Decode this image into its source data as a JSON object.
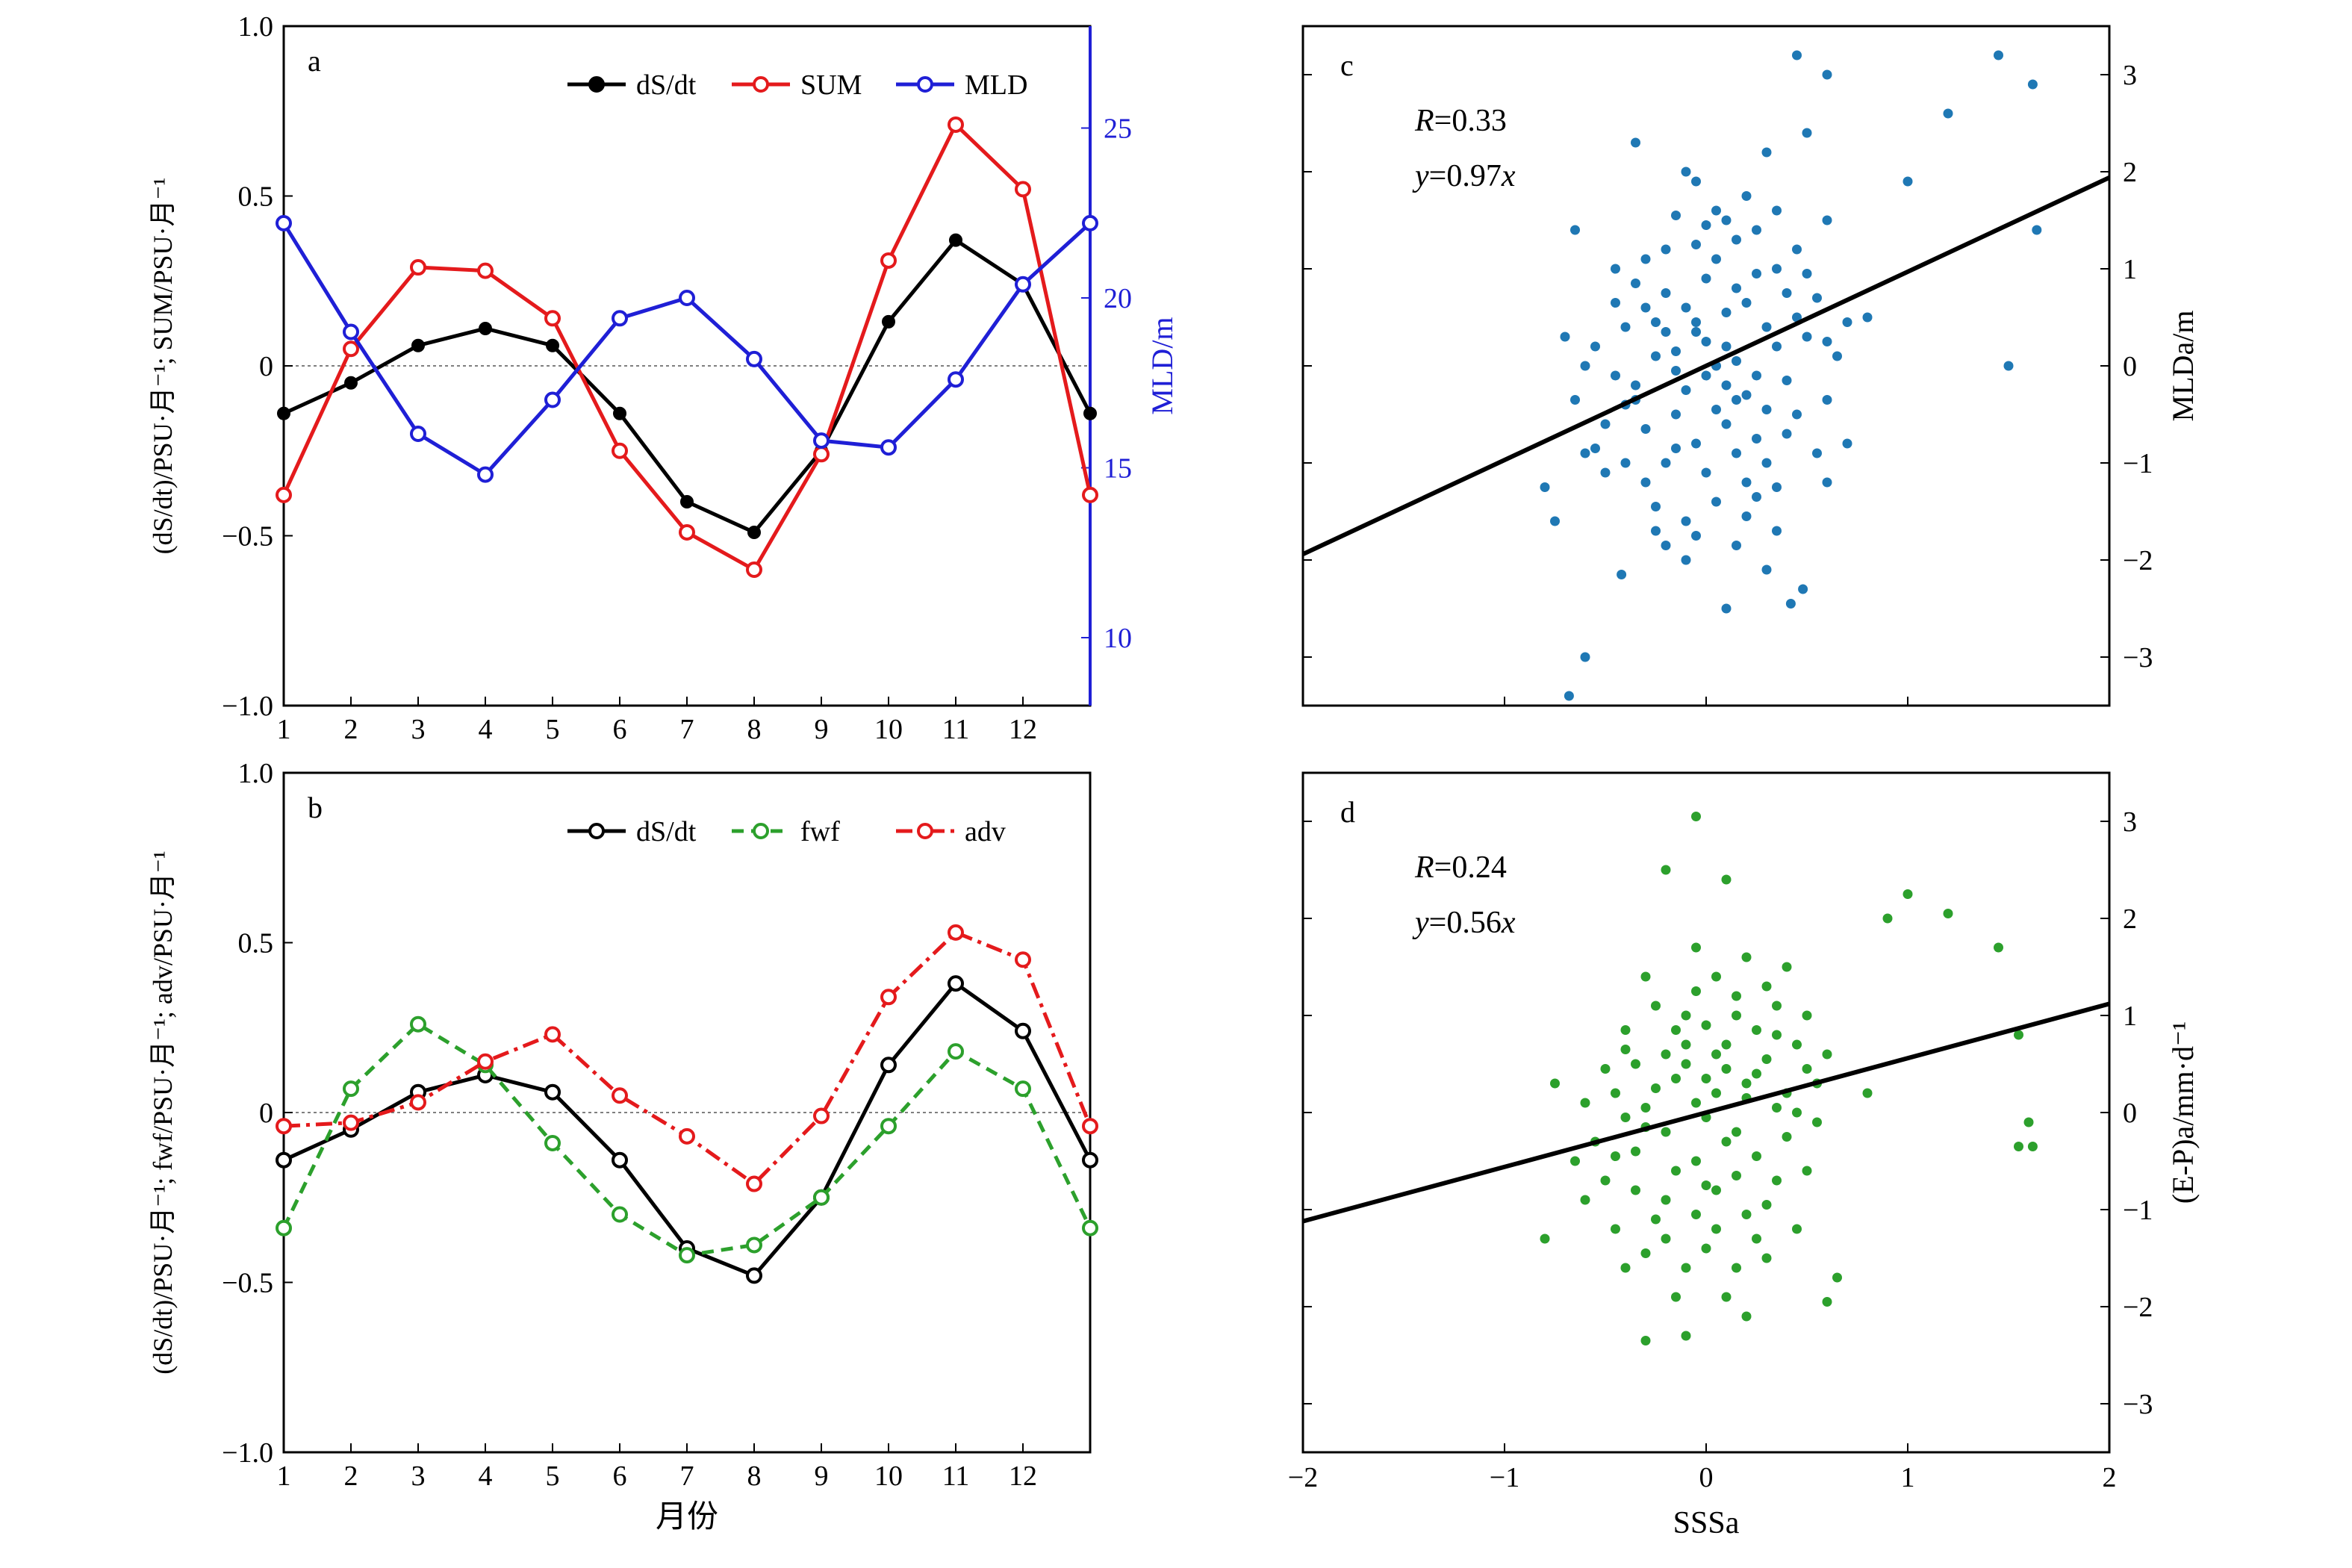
{
  "chart_data": [
    {
      "panel": "a",
      "type": "line",
      "ylabel": "(dS/dt)/PSU·月⁻¹; SUM/PSU·月⁻¹",
      "y2label": "MLD/m",
      "x": [
        1,
        2,
        3,
        4,
        5,
        6,
        7,
        8,
        9,
        10,
        11,
        12,
        13
      ],
      "xticks": [
        "1",
        "2",
        "3",
        "4",
        "5",
        "6",
        "7",
        "8",
        "9",
        "10",
        "11",
        "12"
      ],
      "xlim": [
        1,
        13
      ],
      "ylim": [
        -1,
        1
      ],
      "yticks": [
        "−1.0",
        "−0.5",
        "0",
        "0.5",
        "1.0"
      ],
      "y2lim": [
        8,
        28
      ],
      "y2ticks": [
        "10",
        "15",
        "20",
        "25"
      ],
      "legend_position": "top-right",
      "series": [
        {
          "name": "dS/dt",
          "axis": "left",
          "color": "#000000",
          "dash": "solid",
          "marker": "plus",
          "values": [
            -0.14,
            -0.05,
            0.06,
            0.11,
            0.06,
            -0.14,
            -0.4,
            -0.49,
            -0.25,
            0.13,
            0.37,
            0.24,
            -0.14
          ]
        },
        {
          "name": "SUM",
          "axis": "left",
          "color": "#e41a1c",
          "dash": "solid",
          "marker": "circle",
          "values": [
            -0.38,
            0.05,
            0.29,
            0.28,
            0.14,
            -0.25,
            -0.49,
            -0.6,
            -0.26,
            0.31,
            0.71,
            0.52,
            -0.38
          ]
        },
        {
          "name": "MLD",
          "axis": "right",
          "color": "#1f1fd6",
          "dash": "solid",
          "marker": "circle",
          "values": [
            22.2,
            19.0,
            16.0,
            14.8,
            17.0,
            19.4,
            20.0,
            18.2,
            15.8,
            15.6,
            17.6,
            20.4,
            22.2
          ]
        }
      ]
    },
    {
      "panel": "b",
      "type": "line",
      "ylabel": "(dS/dt)/PSU·月⁻¹; fwf/PSU·月⁻¹; adv/PSU·月⁻¹",
      "xlabel": "月份",
      "x": [
        1,
        2,
        3,
        4,
        5,
        6,
        7,
        8,
        9,
        10,
        11,
        12,
        13
      ],
      "xticks": [
        "1",
        "2",
        "3",
        "4",
        "5",
        "6",
        "7",
        "8",
        "9",
        "10",
        "11",
        "12"
      ],
      "xlim": [
        1,
        13
      ],
      "ylim": [
        -1,
        1
      ],
      "yticks": [
        "−1.0",
        "−0.5",
        "0",
        "0.5",
        "1.0"
      ],
      "legend_position": "top-right",
      "series": [
        {
          "name": "dS/dt",
          "color": "#000000",
          "dash": "solid",
          "marker": "circle",
          "values": [
            -0.14,
            -0.05,
            0.06,
            0.11,
            0.06,
            -0.14,
            -0.4,
            -0.48,
            -0.25,
            0.14,
            0.38,
            0.24,
            -0.14
          ]
        },
        {
          "name": "fwf",
          "color": "#2ca02c",
          "dash": "dashed",
          "marker": "circle",
          "values": [
            -0.34,
            0.07,
            0.26,
            0.14,
            -0.09,
            -0.3,
            -0.42,
            -0.39,
            -0.25,
            -0.04,
            0.18,
            0.07,
            -0.34
          ]
        },
        {
          "name": "adv",
          "color": "#e41a1c",
          "dash": "dashdot",
          "marker": "circle",
          "values": [
            -0.04,
            -0.03,
            0.03,
            0.15,
            0.23,
            0.05,
            -0.07,
            -0.21,
            -0.01,
            0.34,
            0.53,
            0.45,
            -0.04
          ]
        }
      ]
    },
    {
      "panel": "c",
      "type": "scatter",
      "color": "#1f78b4",
      "ylabel": "MLDa/m",
      "xlim": [
        -2,
        2
      ],
      "ylim": [
        -3.5,
        3.5
      ],
      "yticks": [
        "−3",
        "−2",
        "−1",
        "0",
        "1",
        "2",
        "3"
      ],
      "stat_R_label": "R",
      "stat_R_value": "=0.33",
      "stat_fit_y": "y",
      "stat_fit_rest": "=0.97",
      "stat_fit_x": "x",
      "fit": {
        "slope": 0.97,
        "intercept": 0
      },
      "points": [
        [
          -0.6,
          -3.0
        ],
        [
          -0.68,
          -3.4
        ],
        [
          0.1,
          -2.5
        ],
        [
          0.42,
          -2.45
        ],
        [
          0.48,
          -2.3
        ],
        [
          -0.42,
          -2.15
        ],
        [
          -0.1,
          -2.0
        ],
        [
          0.3,
          -2.1
        ],
        [
          0.6,
          -1.2
        ],
        [
          0.35,
          -1.7
        ],
        [
          -0.8,
          -1.25
        ],
        [
          -0.75,
          -1.6
        ],
        [
          0.7,
          -0.8
        ],
        [
          0.25,
          -1.35
        ],
        [
          -0.2,
          -1.85
        ],
        [
          -0.05,
          -1.75
        ],
        [
          0.15,
          -0.9
        ],
        [
          -0.3,
          -1.2
        ],
        [
          -0.5,
          -0.6
        ],
        [
          -0.15,
          -0.85
        ],
        [
          0.05,
          -0.45
        ],
        [
          -0.35,
          -0.2
        ],
        [
          0.2,
          -0.3
        ],
        [
          -0.65,
          -0.35
        ],
        [
          0.45,
          -0.5
        ],
        [
          -0.25,
          0.1
        ],
        [
          0.1,
          0.2
        ],
        [
          -0.05,
          0.45
        ],
        [
          0.3,
          0.4
        ],
        [
          -0.55,
          0.2
        ],
        [
          0.55,
          0.7
        ],
        [
          0.8,
          0.5
        ],
        [
          -0.7,
          0.3
        ],
        [
          0.0,
          0.9
        ],
        [
          0.35,
          1.0
        ],
        [
          -0.2,
          1.2
        ],
        [
          0.15,
          1.3
        ],
        [
          -0.45,
          1.0
        ],
        [
          0.6,
          1.5
        ],
        [
          -0.65,
          1.4
        ],
        [
          0.05,
          1.6
        ],
        [
          -0.1,
          2.0
        ],
        [
          0.3,
          2.2
        ],
        [
          -0.35,
          2.3
        ],
        [
          0.5,
          2.4
        ],
        [
          0.45,
          3.2
        ],
        [
          0.6,
          3.0
        ],
        [
          1.0,
          1.9
        ],
        [
          1.2,
          2.6
        ],
        [
          1.45,
          3.2
        ],
        [
          1.62,
          2.9
        ],
        [
          1.64,
          1.4
        ],
        [
          1.5,
          0.0
        ],
        [
          -0.4,
          -1.0
        ],
        [
          -0.3,
          0.6
        ],
        [
          0.25,
          0.95
        ],
        [
          0.4,
          -0.15
        ],
        [
          0.0,
          -0.1
        ],
        [
          -0.15,
          -0.5
        ],
        [
          0.1,
          0.55
        ],
        [
          -0.25,
          -1.45
        ],
        [
          0.2,
          -1.55
        ],
        [
          0.0,
          -1.1
        ],
        [
          0.5,
          0.3
        ],
        [
          0.65,
          0.1
        ],
        [
          -0.55,
          -0.85
        ],
        [
          -0.45,
          0.65
        ],
        [
          0.35,
          1.6
        ],
        [
          -0.05,
          1.25
        ],
        [
          0.25,
          -0.75
        ],
        [
          -0.1,
          -0.25
        ],
        [
          0.15,
          0.05
        ],
        [
          0.05,
          -1.4
        ],
        [
          -0.2,
          0.35
        ],
        [
          0.4,
          0.75
        ],
        [
          -0.3,
          -0.65
        ],
        [
          -0.05,
          1.9
        ],
        [
          0.2,
          1.75
        ],
        [
          -0.15,
          1.55
        ],
        [
          0.1,
          -0.6
        ],
        [
          0.3,
          -1.0
        ],
        [
          -0.4,
          -0.4
        ],
        [
          0.0,
          0.25
        ],
        [
          0.55,
          -0.9
        ],
        [
          0.7,
          0.45
        ],
        [
          -0.6,
          0.0
        ],
        [
          -0.1,
          -1.6
        ],
        [
          0.15,
          -1.85
        ],
        [
          -0.25,
          -1.7
        ],
        [
          0.45,
          1.2
        ],
        [
          -0.35,
          0.85
        ],
        [
          0.2,
          0.65
        ],
        [
          -0.5,
          -1.1
        ],
        [
          0.6,
          -0.35
        ],
        [
          0.05,
          1.1
        ],
        [
          -0.15,
          0.15
        ],
        [
          0.35,
          0.2
        ],
        [
          -0.2,
          -1.0
        ],
        [
          0.1,
          -0.2
        ],
        [
          0.25,
          1.4
        ],
        [
          -0.05,
          -0.8
        ],
        [
          0.0,
          1.45
        ],
        [
          0.4,
          -0.7
        ],
        [
          -0.3,
          1.1
        ],
        [
          0.15,
          0.8
        ],
        [
          -0.45,
          -0.1
        ],
        [
          0.3,
          -0.45
        ],
        [
          -0.1,
          0.6
        ],
        [
          0.5,
          0.95
        ],
        [
          -0.6,
          -0.9
        ],
        [
          0.2,
          -1.2
        ],
        [
          -0.25,
          0.45
        ],
        [
          0.05,
          0.0
        ],
        [
          0.35,
          -1.25
        ],
        [
          -0.15,
          -0.05
        ],
        [
          0.6,
          0.25
        ],
        [
          -0.35,
          -0.35
        ],
        [
          0.45,
          0.5
        ],
        [
          0.1,
          1.5
        ],
        [
          -0.2,
          0.75
        ],
        [
          0.25,
          -0.1
        ],
        [
          -0.05,
          0.35
        ],
        [
          0.15,
          -0.35
        ],
        [
          -0.4,
          0.4
        ]
      ]
    },
    {
      "panel": "d",
      "type": "scatter",
      "color": "#2ca02c",
      "ylabel": "(E-P)a/mm·d⁻¹",
      "xlabel": "SSSa",
      "xlim": [
        -2,
        2
      ],
      "ylim": [
        -3.5,
        3.5
      ],
      "xticks": [
        "−2",
        "−1",
        "0",
        "1",
        "2"
      ],
      "yticks": [
        "−3",
        "−2",
        "−1",
        "0",
        "1",
        "2",
        "3"
      ],
      "stat_R_label": "R",
      "stat_R_value": "=0.24",
      "stat_fit_y": "y",
      "stat_fit_rest": "=0.56",
      "stat_fit_x": "x",
      "fit": {
        "slope": 0.56,
        "intercept": 0
      },
      "points": [
        [
          -0.05,
          3.05
        ],
        [
          0.1,
          2.4
        ],
        [
          -0.2,
          2.5
        ],
        [
          0.9,
          2.0
        ],
        [
          1.0,
          2.25
        ],
        [
          1.2,
          2.05
        ],
        [
          1.45,
          1.7
        ],
        [
          1.55,
          0.8
        ],
        [
          1.6,
          -0.1
        ],
        [
          1.62,
          -0.35
        ],
        [
          1.55,
          -0.35
        ],
        [
          -0.8,
          -1.3
        ],
        [
          -0.75,
          0.3
        ],
        [
          0.65,
          -1.7
        ],
        [
          0.6,
          -1.95
        ],
        [
          0.45,
          -1.2
        ],
        [
          -0.3,
          -2.35
        ],
        [
          -0.1,
          -2.3
        ],
        [
          0.2,
          -2.1
        ],
        [
          -0.4,
          -1.6
        ],
        [
          0.3,
          -1.5
        ],
        [
          -0.15,
          -1.9
        ],
        [
          0.0,
          -1.4
        ],
        [
          -0.6,
          -0.9
        ],
        [
          0.5,
          -0.6
        ],
        [
          -0.35,
          -0.4
        ],
        [
          0.15,
          -0.2
        ],
        [
          -0.05,
          0.1
        ],
        [
          0.25,
          0.4
        ],
        [
          -0.2,
          0.6
        ],
        [
          0.35,
          0.8
        ],
        [
          -0.45,
          0.2
        ],
        [
          0.55,
          0.3
        ],
        [
          0.8,
          0.2
        ],
        [
          -0.1,
          1.0
        ],
        [
          0.15,
          1.2
        ],
        [
          -0.3,
          1.4
        ],
        [
          0.4,
          1.5
        ],
        [
          -0.05,
          1.7
        ],
        [
          0.2,
          1.6
        ],
        [
          -0.55,
          -0.3
        ],
        [
          0.05,
          -0.8
        ],
        [
          -0.25,
          -1.1
        ],
        [
          0.3,
          -0.95
        ],
        [
          0.0,
          0.35
        ],
        [
          -0.4,
          0.85
        ],
        [
          0.6,
          0.6
        ],
        [
          -0.65,
          -0.5
        ],
        [
          0.1,
          0.7
        ],
        [
          -0.15,
          -0.6
        ],
        [
          0.45,
          0.0
        ],
        [
          -0.3,
          -0.15
        ],
        [
          0.25,
          -0.45
        ],
        [
          -0.1,
          0.5
        ],
        [
          0.05,
          1.4
        ],
        [
          -0.2,
          -1.3
        ],
        [
          0.35,
          1.1
        ],
        [
          -0.5,
          0.45
        ],
        [
          0.15,
          -1.6
        ],
        [
          -0.05,
          -1.05
        ],
        [
          0.2,
          0.15
        ],
        [
          -0.35,
          -0.8
        ],
        [
          0.0,
          -0.05
        ],
        [
          0.5,
          1.0
        ],
        [
          -0.25,
          0.25
        ],
        [
          0.1,
          -0.3
        ],
        [
          0.3,
          0.55
        ],
        [
          -0.45,
          -1.2
        ],
        [
          0.4,
          -0.25
        ],
        [
          -0.15,
          0.85
        ],
        [
          0.05,
          0.6
        ],
        [
          -0.6,
          0.1
        ],
        [
          0.25,
          -1.3
        ],
        [
          -0.05,
          -0.5
        ],
        [
          0.15,
          1.0
        ],
        [
          -0.3,
          0.05
        ],
        [
          0.45,
          0.7
        ],
        [
          -0.2,
          -0.9
        ],
        [
          0.0,
          0.9
        ],
        [
          0.35,
          -0.7
        ],
        [
          -0.4,
          -0.05
        ],
        [
          0.2,
          0.3
        ],
        [
          -0.1,
          -1.6
        ],
        [
          0.1,
          -1.9
        ],
        [
          -0.25,
          1.1
        ],
        [
          0.55,
          -0.1
        ],
        [
          -0.5,
          -0.7
        ],
        [
          0.3,
          1.3
        ],
        [
          0.05,
          -1.2
        ],
        [
          -0.15,
          0.35
        ],
        [
          0.4,
          0.2
        ],
        [
          -0.35,
          0.5
        ],
        [
          0.15,
          -0.65
        ],
        [
          -0.05,
          1.25
        ],
        [
          0.25,
          0.85
        ],
        [
          -0.45,
          -0.45
        ],
        [
          0.1,
          0.45
        ],
        [
          -0.2,
          -0.2
        ],
        [
          0.0,
          -0.75
        ],
        [
          0.35,
          0.05
        ],
        [
          -0.3,
          -1.45
        ],
        [
          0.5,
          0.45
        ],
        [
          -0.1,
          0.7
        ],
        [
          0.2,
          -1.05
        ],
        [
          -0.4,
          0.65
        ],
        [
          0.05,
          0.2
        ]
      ]
    }
  ],
  "panel_labels": {
    "a": "a",
    "b": "b",
    "c": "c",
    "d": "d"
  },
  "scatter_xlabel": "SSSa",
  "scatter_xticks": [
    "−2",
    "−1",
    "0",
    "1",
    "2"
  ],
  "legend": {
    "a": {
      "item1": "dS/dt",
      "item2": "SUM",
      "item3": "MLD"
    },
    "b": {
      "item1": "dS/dt",
      "item2": "fwf",
      "item3": "adv"
    }
  }
}
